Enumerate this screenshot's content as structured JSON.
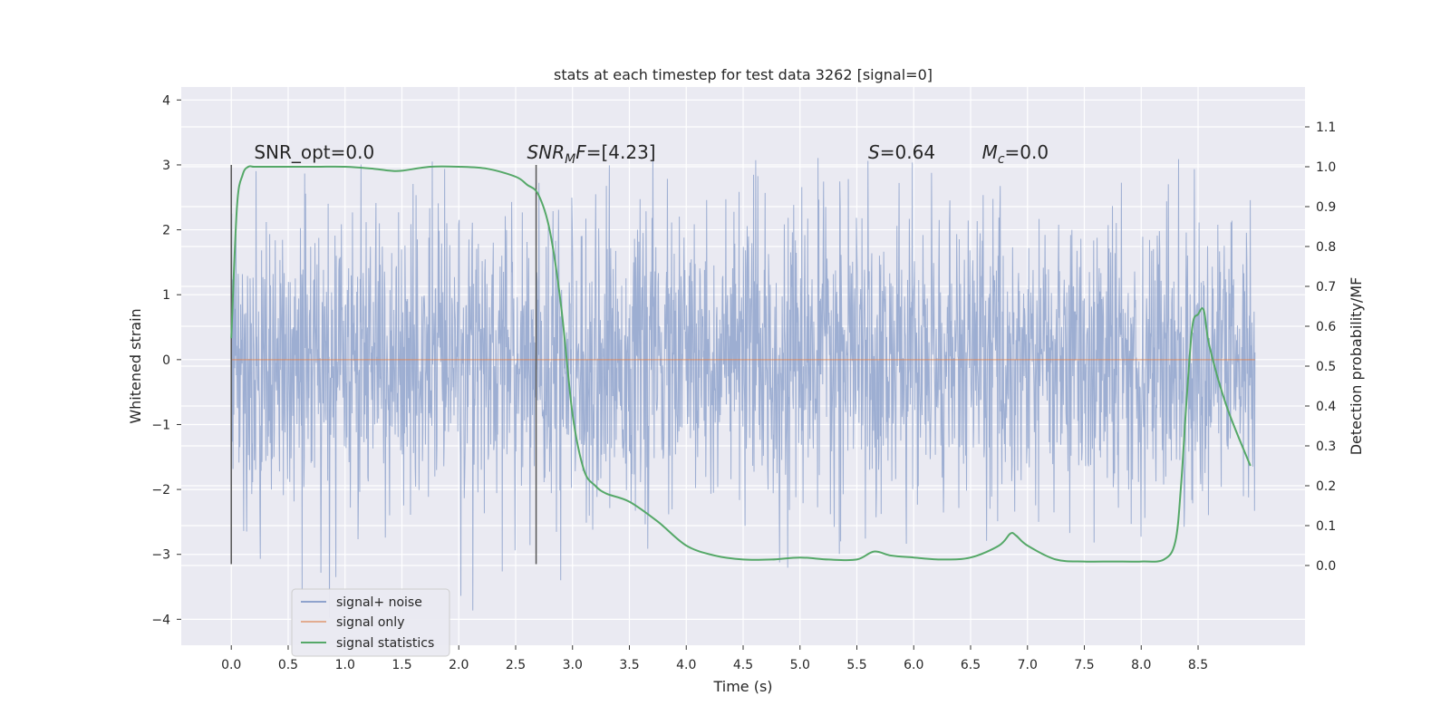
{
  "chart_data": {
    "type": "line",
    "title": "stats at each timestep for test data 3262 [signal=0]",
    "xlabel": "Time (s)",
    "ylabel": "Whitened strain",
    "ylabel_right": "Detection probability/MF",
    "xlim": [
      -0.44,
      9.44
    ],
    "ylim": [
      -4.4,
      4.2
    ],
    "ylim_right": [
      -0.2,
      1.2
    ],
    "xticks": [
      "0.0",
      "0.5",
      "1.0",
      "1.5",
      "2.0",
      "2.5",
      "3.0",
      "3.5",
      "4.0",
      "4.5",
      "5.0",
      "5.5",
      "6.0",
      "6.5",
      "7.0",
      "7.5",
      "8.0",
      "8.5"
    ],
    "xtick_values": [
      0.0,
      0.5,
      1.0,
      1.5,
      2.0,
      2.5,
      3.0,
      3.5,
      4.0,
      4.5,
      5.0,
      5.5,
      6.0,
      6.5,
      7.0,
      7.5,
      8.0,
      8.5
    ],
    "yticks": [
      "4",
      "3",
      "2",
      "1",
      "0",
      "−1",
      "−2",
      "−3",
      "−4"
    ],
    "ytick_values": [
      4,
      3,
      2,
      1,
      0,
      -1,
      -2,
      -3,
      -4
    ],
    "yticks_right": [
      "1.1",
      "1.0",
      "0.9",
      "0.8",
      "0.7",
      "0.6",
      "0.5",
      "0.4",
      "0.3",
      "0.2",
      "0.1",
      "0.0"
    ],
    "ytick_right_values": [
      1.1,
      1.0,
      0.9,
      0.8,
      0.7,
      0.6,
      0.5,
      0.4,
      0.3,
      0.2,
      0.1,
      0.0
    ],
    "grid": true,
    "legend_position": "lower-left",
    "series": [
      {
        "name": "signal+ noise",
        "color": "#8fa3cd",
        "kind": "noise-trace",
        "x_range": [
          0.0,
          9.0
        ],
        "std": 1.1,
        "peak_max": 3.85,
        "peak_min": -4.0
      },
      {
        "name": "signal only",
        "color": "#dd8452",
        "x": [
          0.0,
          9.0
        ],
        "values": [
          0.0,
          0.0
        ]
      },
      {
        "name": "signal statistics",
        "color": "#55a868",
        "axis": "right",
        "x": [
          0.0,
          0.05,
          0.1,
          0.15,
          0.2,
          0.3,
          0.5,
          0.75,
          1.0,
          1.25,
          1.4,
          1.5,
          1.75,
          2.0,
          2.25,
          2.5,
          2.6,
          2.7,
          2.8,
          2.9,
          3.0,
          3.1,
          3.2,
          3.3,
          3.5,
          3.75,
          4.0,
          4.25,
          4.5,
          4.75,
          5.0,
          5.25,
          5.5,
          5.65,
          5.8,
          6.0,
          6.25,
          6.5,
          6.75,
          6.85,
          6.9,
          7.0,
          7.25,
          7.5,
          7.75,
          8.0,
          8.2,
          8.3,
          8.35,
          8.4,
          8.45,
          8.5,
          8.55,
          8.6,
          8.75,
          8.96
        ],
        "values": [
          0.57,
          0.9,
          0.98,
          1.0,
          1.0,
          1.0,
          1.0,
          1.0,
          1.0,
          0.995,
          0.99,
          0.99,
          1.0,
          1.0,
          0.995,
          0.975,
          0.955,
          0.93,
          0.84,
          0.65,
          0.38,
          0.24,
          0.2,
          0.18,
          0.16,
          0.11,
          0.05,
          0.025,
          0.015,
          0.015,
          0.02,
          0.015,
          0.015,
          0.035,
          0.025,
          0.02,
          0.015,
          0.02,
          0.05,
          0.08,
          0.075,
          0.05,
          0.015,
          0.01,
          0.01,
          0.01,
          0.015,
          0.06,
          0.2,
          0.42,
          0.6,
          0.63,
          0.64,
          0.55,
          0.4,
          0.25
        ]
      }
    ],
    "vlines": [
      {
        "x": 0.0,
        "ymin": -3.15,
        "ymax": 3.0,
        "color": "#555555"
      },
      {
        "x": 2.68,
        "ymin": -3.15,
        "ymax": 3.0,
        "color": "#555555"
      }
    ],
    "annotations": [
      {
        "id": "snr-opt",
        "x": 0.2,
        "y": 3.1,
        "text": "SNR_opt=0.0"
      },
      {
        "id": "snr-mf",
        "x": 2.6,
        "y": 3.1,
        "main_italic": "SNR",
        "sub": "M",
        "rest_italic": "F",
        "rest": "=[4.23]"
      },
      {
        "id": "s-stat",
        "x": 5.6,
        "y": 3.1,
        "main_italic": "S",
        "rest": "=0.64"
      },
      {
        "id": "mc-stat",
        "x": 6.6,
        "y": 3.1,
        "main_italic": "M",
        "sub": "c",
        "rest": "=0.0"
      }
    ],
    "legend": [
      {
        "label": "signal+ noise",
        "color": "#8fa3cd"
      },
      {
        "label": "signal only",
        "color": "#dd8452"
      },
      {
        "label": "signal statistics",
        "color": "#55a868"
      }
    ]
  }
}
